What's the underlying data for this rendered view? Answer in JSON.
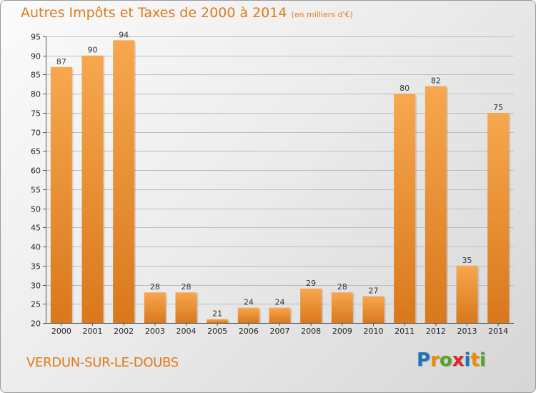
{
  "page": {
    "title": "Autres Impôts et Taxes de 2000 à 2014",
    "subtitle": "(en milliers d'€)",
    "commune": "VERDUN-SUR-LE-DOUBS",
    "logo": {
      "letters": [
        "P",
        "r",
        "o",
        "x",
        "i",
        "t",
        "i"
      ],
      "colors": [
        "#1e73be",
        "#f08a00",
        "#58a52b",
        "#e3202c",
        "#1e73be",
        "#f08a00",
        "#58a52b"
      ]
    }
  },
  "colors": {
    "bar_light": "#f7a74e",
    "bar_dark": "#d9781c",
    "grid": "#bdbdbd",
    "text_accent": "#e07a1c"
  },
  "chart_data": {
    "type": "bar",
    "title": "Autres Impôts et Taxes de 2000 à 2014",
    "subtitle": "(en milliers d'€)",
    "categories": [
      "2000",
      "2001",
      "2002",
      "2003",
      "2004",
      "2005",
      "2006",
      "2007",
      "2008",
      "2009",
      "2010",
      "2011",
      "2012",
      "2013",
      "2014"
    ],
    "values": [
      87,
      90,
      94,
      28,
      28,
      21,
      24,
      24,
      29,
      28,
      27,
      80,
      82,
      35,
      75
    ],
    "ylim": [
      20,
      95
    ],
    "yticks": [
      20,
      25,
      30,
      35,
      40,
      45,
      50,
      55,
      60,
      65,
      70,
      75,
      80,
      85,
      90,
      95
    ],
    "grid": true,
    "data_labels": true
  }
}
